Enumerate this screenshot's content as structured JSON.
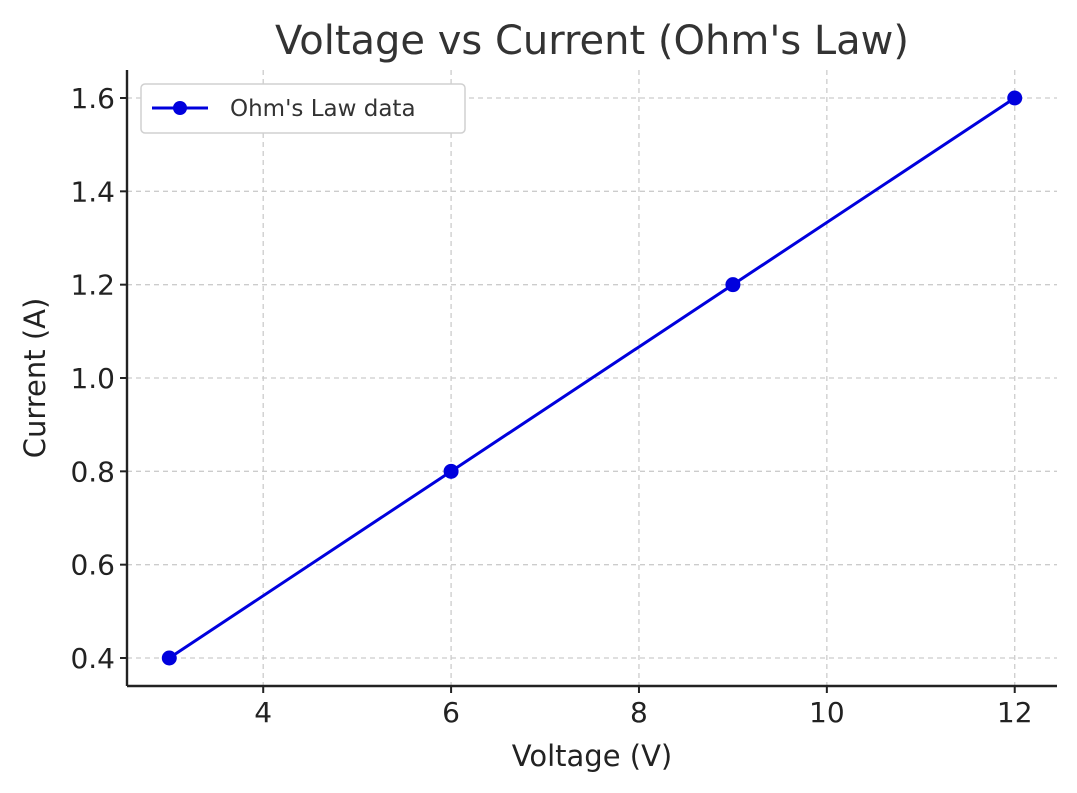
{
  "chart_data": {
    "type": "line",
    "title": "Voltage vs Current (Ohm's Law)",
    "xlabel": "Voltage (V)",
    "ylabel": "Current (A)",
    "xlim": [
      2.55,
      12.45
    ],
    "ylim": [
      0.34,
      1.66
    ],
    "xticks": [
      4,
      6,
      8,
      10,
      12
    ],
    "xtick_labels": [
      "4",
      "6",
      "8",
      "10",
      "12"
    ],
    "yticks": [
      0.4,
      0.6,
      0.8,
      1.0,
      1.2,
      1.4,
      1.6
    ],
    "ytick_labels": [
      "0.4",
      "0.6",
      "0.8",
      "1.0",
      "1.2",
      "1.4",
      "1.6"
    ],
    "grid": true,
    "legend_position": "top-left",
    "series": [
      {
        "name": "Ohm's Law data",
        "color": "#0000dd",
        "marker": "circle",
        "x": [
          3,
          6,
          9,
          12
        ],
        "y": [
          0.4,
          0.8,
          1.2,
          1.6
        ]
      }
    ]
  }
}
